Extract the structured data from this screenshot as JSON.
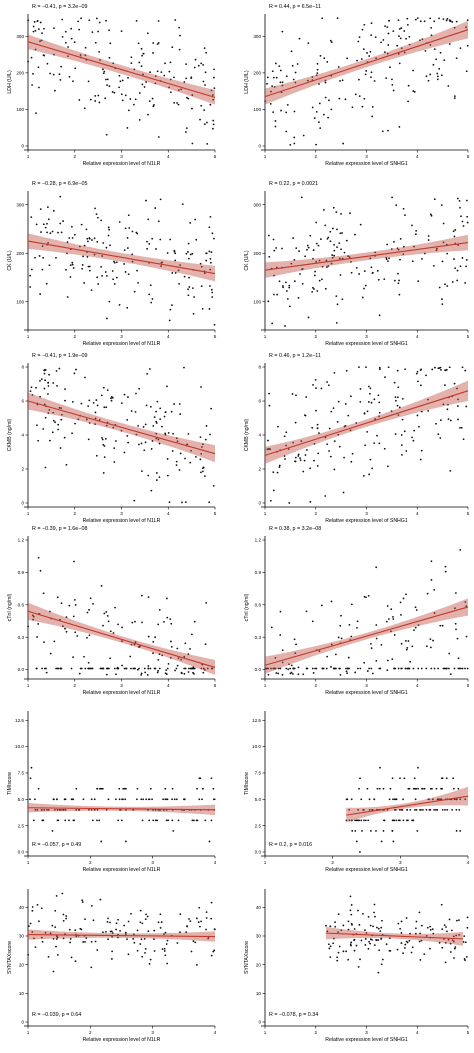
{
  "chart_data": [
    {
      "type": "scatter",
      "panel": "ldh-n1lr",
      "title": "",
      "xlabel": "Relative expression level of N1LR",
      "ylabel": "LDH (U/L)",
      "xlim": [
        1,
        5
      ],
      "ylim": [
        0,
        350
      ],
      "xticks": [
        1,
        2,
        3,
        4,
        5
      ],
      "yticks": [
        0,
        100,
        200,
        300
      ],
      "stat_text": "R = −0.41, p = 3.2e−09",
      "r": -0.41,
      "p": "3.2e-09",
      "fit": [
        [
          1,
          285
        ],
        [
          5,
          133
        ]
      ],
      "band_halfwidth": [
        20,
        12,
        20
      ],
      "seed": 11,
      "n": 190,
      "resid_sd": 75,
      "line_color": "#c0392b",
      "band_color": "#c1544a"
    },
    {
      "type": "scatter",
      "panel": "ldh-snhg1",
      "title": "",
      "xlabel": "Relative expression level of SNHG1",
      "ylabel": "LDH (U/L)",
      "xlim": [
        1,
        5
      ],
      "ylim": [
        0,
        350
      ],
      "xticks": [
        1,
        2,
        3,
        4,
        5
      ],
      "yticks": [
        0,
        100,
        200,
        300
      ],
      "stat_text": "R = 0.44, p = 6.5e−11",
      "r": 0.44,
      "p": "6.5e-11",
      "fit": [
        [
          1,
          135
        ],
        [
          5,
          318
        ]
      ],
      "band_halfwidth": [
        22,
        11,
        24
      ],
      "seed": 23,
      "n": 190,
      "resid_sd": 80,
      "line_color": "#c0392b",
      "band_color": "#c1544a"
    },
    {
      "type": "scatter",
      "panel": "ck-n1lr",
      "title": "",
      "xlabel": "Relative expression level of N1LR",
      "ylabel": "CK (U/L)",
      "xlim": [
        1,
        5
      ],
      "ylim": [
        50,
        320
      ],
      "xticks": [
        1,
        2,
        3,
        4,
        5
      ],
      "yticks": [
        100,
        200,
        300
      ],
      "stat_text": "R = −0.28, p = 6.9e−05",
      "r": -0.28,
      "p": "6.9e-05",
      "fit": [
        [
          1,
          225
        ],
        [
          5,
          158
        ]
      ],
      "band_halfwidth": [
        16,
        9,
        16
      ],
      "seed": 37,
      "n": 190,
      "resid_sd": 55,
      "line_color": "#c0392b",
      "band_color": "#c1544a"
    },
    {
      "type": "scatter",
      "panel": "ck-snhg1",
      "title": "",
      "xlabel": "Relative expression level of SNHG1",
      "ylabel": "CK (U/L)",
      "xlim": [
        1,
        5
      ],
      "ylim": [
        50,
        320
      ],
      "xticks": [
        1,
        2,
        3,
        4,
        5
      ],
      "yticks": [
        100,
        200,
        300
      ],
      "stat_text": "R = 0.22, p = 0.0021",
      "r": 0.22,
      "p": "0.0021",
      "fit": [
        [
          1,
          165
        ],
        [
          5,
          222
        ]
      ],
      "band_halfwidth": [
        16,
        8,
        16
      ],
      "seed": 41,
      "n": 190,
      "resid_sd": 55,
      "line_color": "#c0392b",
      "band_color": "#c1544a"
    },
    {
      "type": "scatter",
      "panel": "ckmb-n1lr",
      "title": "",
      "xlabel": "Relative expression level of N1LR",
      "ylabel": "CKMB (ng/ml)",
      "xlim": [
        1,
        5
      ],
      "ylim": [
        0,
        8
      ],
      "xticks": [
        1,
        2,
        3,
        4,
        5
      ],
      "yticks": [
        0,
        2,
        4,
        6,
        8
      ],
      "stat_text": "R = −0.41, p = 1.9e−09",
      "r": -0.41,
      "p": "1.9e-09",
      "fit": [
        [
          1,
          6.0
        ],
        [
          5,
          2.9
        ]
      ],
      "band_halfwidth": [
        0.5,
        0.25,
        0.5
      ],
      "seed": 53,
      "n": 190,
      "resid_sd": 1.8,
      "line_color": "#c0392b",
      "band_color": "#c1544a"
    },
    {
      "type": "scatter",
      "panel": "ckmb-snhg1",
      "title": "",
      "xlabel": "Relative expression level of SNHG1",
      "ylabel": "CKMB (ng/ml)",
      "xlim": [
        1,
        5
      ],
      "ylim": [
        0,
        8
      ],
      "xticks": [
        1,
        2,
        3,
        4,
        5
      ],
      "yticks": [
        0,
        2,
        4,
        6,
        8
      ],
      "stat_text": "R = 0.46, p = 1.2e−11",
      "r": 0.46,
      "p": "1.2e-11",
      "fit": [
        [
          1,
          2.8
        ],
        [
          5,
          6.6
        ]
      ],
      "band_halfwidth": [
        0.5,
        0.22,
        0.6
      ],
      "seed": 67,
      "n": 190,
      "resid_sd": 1.8,
      "line_color": "#c0392b",
      "band_color": "#c1544a"
    },
    {
      "type": "scatter",
      "panel": "ctni-n1lr",
      "title": "",
      "xlabel": "Relative expression level of N1LR",
      "ylabel": "cTnI (ng/ml)",
      "xlim": [
        1,
        5
      ],
      "ylim": [
        -0.05,
        1.2
      ],
      "xticks": [
        1,
        2,
        3,
        4,
        5
      ],
      "yticks": [
        0.0,
        0.3,
        0.6,
        0.9,
        1.2
      ],
      "ytick_labels": [
        "0.0",
        "0.3",
        "0.6",
        "0.9",
        "1.2"
      ],
      "stat_text": "R = −0.39, p = 1.6e−08",
      "r": -0.39,
      "p": "1.6e-08",
      "fit": [
        [
          1,
          0.54
        ],
        [
          5,
          0.02
        ]
      ],
      "band_halfwidth": [
        0.08,
        0.03,
        0.07
      ],
      "seed": 71,
      "n": 190,
      "resid_sd": 0.25,
      "floor": 0.01,
      "floor_share": 0.4,
      "line_color": "#c0392b",
      "band_color": "#c1544a"
    },
    {
      "type": "scatter",
      "panel": "ctni-snhg1",
      "title": "",
      "xlabel": "Relative expression level of SNHG1",
      "ylabel": "cTnI (ng/ml)",
      "xlim": [
        1,
        5
      ],
      "ylim": [
        -0.05,
        1.2
      ],
      "xticks": [
        1,
        2,
        3,
        4,
        5
      ],
      "yticks": [
        0.0,
        0.3,
        0.6,
        0.9,
        1.2
      ],
      "ytick_labels": [
        "0.0",
        "0.3",
        "0.6",
        "0.9",
        "1.2"
      ],
      "stat_text": "R = 0.38, p = 3.2e−08",
      "r": 0.38,
      "p": "3.2e-08",
      "fit": [
        [
          1,
          0.04
        ],
        [
          5,
          0.58
        ]
      ],
      "band_halfwidth": [
        0.08,
        0.03,
        0.08
      ],
      "seed": 83,
      "n": 190,
      "resid_sd": 0.25,
      "floor": 0.01,
      "floor_share": 0.4,
      "line_color": "#c0392b",
      "band_color": "#c1544a"
    },
    {
      "type": "scatter",
      "panel": "timi-n1lr",
      "title": "",
      "xlabel": "Relative expression level of N1LR",
      "ylabel": "TIMIscore",
      "xlim": [
        1,
        4
      ],
      "ylim": [
        0,
        13
      ],
      "xticks": [
        1,
        2,
        3,
        4
      ],
      "yticks": [
        0.0,
        2.5,
        5.0,
        7.5,
        10.0,
        12.5
      ],
      "ytick_labels": [
        "0.0",
        "2.5",
        "5.0",
        "7.5",
        "10.0",
        "12.5"
      ],
      "stat_text": "R = −0.057, p = 0.49",
      "r": -0.057,
      "p": "0.49",
      "fit": [
        [
          1,
          4.2
        ],
        [
          4,
          4.0
        ]
      ],
      "band_halfwidth": [
        0.45,
        0.2,
        0.5
      ],
      "seed": 97,
      "n": 150,
      "resid_sd": 1.4,
      "integer_y": true,
      "line_color": "#c0392b",
      "band_color": "#c1544a"
    },
    {
      "type": "scatter",
      "panel": "timi-snhg1",
      "title": "",
      "xlabel": "Relative expression level of SNHG1",
      "ylabel": "TIMIscore",
      "xlim": [
        1,
        4
      ],
      "ylim": [
        0,
        13
      ],
      "xticks": [
        1,
        2,
        3,
        4
      ],
      "yticks": [
        0.0,
        2.5,
        5.0,
        7.5,
        10.0,
        12.5
      ],
      "ytick_labels": [
        "0.0",
        "2.5",
        "5.0",
        "7.5",
        "10.0",
        "12.5"
      ],
      "stat_text": "R = 0.2, p = 0.016",
      "r": 0.2,
      "p": "0.016",
      "fit": [
        [
          2.2,
          3.5
        ],
        [
          4,
          5.3
        ]
      ],
      "band_halfwidth": [
        0.7,
        0.25,
        0.9
      ],
      "seed": 101,
      "n": 150,
      "resid_sd": 1.4,
      "integer_y": true,
      "x_min_data": 2.2,
      "line_color": "#c0392b",
      "band_color": "#c1544a"
    },
    {
      "type": "scatter",
      "panel": "syntax-n1lr",
      "title": "",
      "xlabel": "Relative expression level of N1LR",
      "ylabel": "SYNTAXscore",
      "xlim": [
        1,
        4
      ],
      "ylim": [
        0,
        45
      ],
      "xticks": [
        1,
        2,
        3,
        4
      ],
      "yticks": [
        0,
        10,
        20,
        30,
        40
      ],
      "stat_text": "R = −0.039, p = 0.64",
      "r": -0.039,
      "p": "0.64",
      "fit": [
        [
          1,
          30.5
        ],
        [
          4,
          29.8
        ]
      ],
      "band_halfwidth": [
        1.8,
        0.8,
        1.8
      ],
      "seed": 113,
      "n": 150,
      "resid_sd": 5.5,
      "line_color": "#c0392b",
      "band_color": "#c1544a"
    },
    {
      "type": "scatter",
      "panel": "syntax-snhg1",
      "title": "",
      "xlabel": "Relative expression level of SNHG1",
      "ylabel": "SYNTAXscore",
      "xlim": [
        1,
        5
      ],
      "ylim": [
        0,
        45
      ],
      "xticks": [
        1,
        2,
        3,
        4,
        5
      ],
      "yticks": [
        0,
        10,
        20,
        30,
        40
      ],
      "stat_text": "R = −0.078, p = 0.34",
      "r": -0.078,
      "p": "0.34",
      "fit": [
        [
          2.2,
          31
        ],
        [
          4.9,
          29
        ]
      ],
      "band_halfwidth": [
        2.2,
        0.9,
        2.4
      ],
      "seed": 127,
      "n": 150,
      "resid_sd": 5.5,
      "x_min_data": 2.2,
      "line_color": "#c0392b",
      "band_color": "#c1544a"
    }
  ]
}
